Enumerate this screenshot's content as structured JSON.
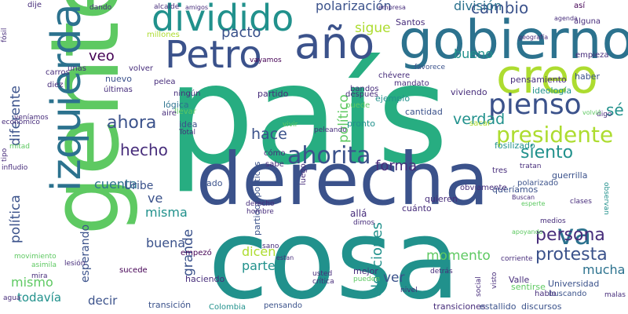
{
  "words": [
    {
      "text": "país",
      "color": "#27ad81"
    },
    {
      "text": "gente",
      "color": "#5ec962"
    },
    {
      "text": "cosa",
      "color": "#21918c"
    },
    {
      "text": "derecha",
      "color": "#3b528b"
    },
    {
      "text": "gobierno",
      "color": "#2c728e"
    },
    {
      "text": "izquierda",
      "color": "#2c728e"
    },
    {
      "text": "año",
      "color": "#3b528b"
    },
    {
      "text": "creo",
      "color": "#addc30"
    },
    {
      "text": "Petro",
      "color": "#3b528b"
    },
    {
      "text": "dividido",
      "color": "#21918c"
    },
    {
      "text": "pienso",
      "color": "#3b528b"
    },
    {
      "text": "ahorita",
      "color": "#3b528b"
    },
    {
      "text": "presidente",
      "color": "#addc30"
    },
    {
      "text": "va",
      "color": "#2c728e"
    },
    {
      "text": "protesta",
      "color": "#3b528b"
    },
    {
      "text": "ahora",
      "color": "#3b528b"
    },
    {
      "text": "hecho",
      "color": "#472d7b"
    },
    {
      "text": "hace",
      "color": "#3b528b"
    },
    {
      "text": "siento",
      "color": "#21918c"
    },
    {
      "text": "persona",
      "color": "#472d7b"
    },
    {
      "text": "polarización",
      "color": "#3b528b"
    },
    {
      "text": "cambio",
      "color": "#3b528b"
    },
    {
      "text": "pacto",
      "color": "#3b528b"
    },
    {
      "text": "división",
      "color": "#2c728e"
    },
    {
      "text": "sigue",
      "color": "#addc30"
    },
    {
      "text": "veo",
      "color": "#440154"
    },
    {
      "text": "bueno",
      "color": "#21918c"
    },
    {
      "text": "verdad",
      "color": "#21918c"
    },
    {
      "text": "sé",
      "color": "#21918c"
    },
    {
      "text": "forma",
      "color": "#472d7b"
    },
    {
      "text": "político",
      "color": "#5ec962"
    },
    {
      "text": "diferente",
      "color": "#3b528b"
    },
    {
      "text": "política",
      "color": "#3b528b"
    },
    {
      "text": "cuenta",
      "color": "#2c728e"
    },
    {
      "text": "ve",
      "color": "#3b528b"
    },
    {
      "text": "misma",
      "color": "#21918c"
    },
    {
      "text": "Uribe",
      "color": "#3b528b"
    },
    {
      "text": "grande",
      "color": "#3b528b"
    },
    {
      "text": "buena",
      "color": "#3b528b"
    },
    {
      "text": "momento",
      "color": "#5ec962"
    },
    {
      "text": "dicen",
      "color": "#addc30"
    },
    {
      "text": "parte",
      "color": "#21918c"
    },
    {
      "text": "elecciones",
      "color": "#21918c"
    },
    {
      "text": "ver",
      "color": "#3b528b"
    },
    {
      "text": "mucha",
      "color": "#2c728e"
    },
    {
      "text": "mismo",
      "color": "#5ec962"
    },
    {
      "text": "esperando",
      "color": "#3b528b"
    },
    {
      "text": "todavía",
      "color": "#21918c"
    },
    {
      "text": "decir",
      "color": "#3b528b"
    },
    {
      "text": "Santos",
      "color": "#472d7b"
    },
    {
      "text": "pensamiento",
      "color": "#472d7b"
    },
    {
      "text": "partido",
      "color": "#472d7b"
    },
    {
      "text": "partidos políticos",
      "color": "#3b528b"
    },
    {
      "text": "ejemplo",
      "color": "#21918c"
    },
    {
      "text": "viviendo",
      "color": "#472d7b"
    },
    {
      "text": "fosilizado",
      "color": "#21918c"
    },
    {
      "text": "ideología",
      "color": "#21918c"
    },
    {
      "text": "cantidad",
      "color": "#3b528b"
    },
    {
      "text": "pronto",
      "color": "#21918c"
    },
    {
      "text": "lógica",
      "color": "#2c728e"
    },
    {
      "text": "idea",
      "color": "#3b528b"
    },
    {
      "text": "lado",
      "color": "#3b528b"
    },
    {
      "text": "tres",
      "color": "#472d7b"
    },
    {
      "text": "queríamos",
      "color": "#3b528b"
    },
    {
      "text": "Universidad",
      "color": "#3b528b"
    },
    {
      "text": "transiciones",
      "color": "#472d7b"
    },
    {
      "text": "estallido",
      "color": "#3b528b"
    },
    {
      "text": "discursos",
      "color": "#3b528b"
    },
    {
      "text": "buscando",
      "color": "#3b528b"
    },
    {
      "text": "sentirse",
      "color": "#5ec962"
    },
    {
      "text": "hablo",
      "color": "#472d7b"
    },
    {
      "text": "Valle",
      "color": "#472d7b"
    },
    {
      "text": "transición",
      "color": "#3b528b"
    },
    {
      "text": "Colombia",
      "color": "#21918c"
    },
    {
      "text": "pensando",
      "color": "#3b528b"
    },
    {
      "text": "mejor",
      "color": "#472d7b"
    },
    {
      "text": "haciendo",
      "color": "#472d7b"
    },
    {
      "text": "sucede",
      "color": "#440154"
    },
    {
      "text": "empezó",
      "color": "#440154"
    },
    {
      "text": "allá",
      "color": "#472d7b"
    },
    {
      "text": "cuánto",
      "color": "#472d7b"
    },
    {
      "text": "quieren",
      "color": "#472d7b"
    },
    {
      "text": "clases",
      "color": "#472d7b"
    },
    {
      "text": "medios",
      "color": "#472d7b"
    },
    {
      "text": "obviamente",
      "color": "#472d7b"
    },
    {
      "text": "polarizado",
      "color": "#3b528b"
    },
    {
      "text": "guerrilla",
      "color": "#3b528b"
    },
    {
      "text": "haber",
      "color": "#3b528b"
    },
    {
      "text": "empieza",
      "color": "#472d7b"
    },
    {
      "text": "alguna",
      "color": "#472d7b"
    },
    {
      "text": "agenda",
      "color": "#472d7b"
    },
    {
      "text": "así",
      "color": "#440154"
    },
    {
      "text": "chévere",
      "color": "#472d7b"
    },
    {
      "text": "mandato",
      "color": "#472d7b"
    },
    {
      "text": "favorece",
      "color": "#3b528b"
    },
    {
      "text": "bandos",
      "color": "#472d7b"
    },
    {
      "text": "después",
      "color": "#472d7b"
    },
    {
      "text": "puede",
      "color": "#5ec962"
    },
    {
      "text": "nuevo",
      "color": "#3b528b"
    },
    {
      "text": "pelea",
      "color": "#472d7b"
    },
    {
      "text": "últimas",
      "color": "#472d7b"
    },
    {
      "text": "volver",
      "color": "#472d7b"
    },
    {
      "text": "unas",
      "color": "#472d7b"
    },
    {
      "text": "carros",
      "color": "#472d7b"
    },
    {
      "text": "diez",
      "color": "#472d7b"
    },
    {
      "text": "mitad",
      "color": "#5ec962"
    },
    {
      "text": "económico",
      "color": "#472d7b"
    },
    {
      "text": "veníamos",
      "color": "#472d7b"
    },
    {
      "text": "ningún",
      "color": "#472d7b"
    },
    {
      "text": "llevar",
      "color": "#5ec962"
    },
    {
      "text": "aire",
      "color": "#472d7b"
    },
    {
      "text": "Total",
      "color": "#472d7b"
    },
    {
      "text": "cómo",
      "color": "#472d7b"
    },
    {
      "text": "sabe",
      "color": "#472d7b"
    },
    {
      "text": "luego",
      "color": "#472d7b"
    },
    {
      "text": "dije",
      "color": "#472d7b"
    },
    {
      "text": "fósil",
      "color": "#472d7b"
    },
    {
      "text": "dando",
      "color": "#472d7b"
    },
    {
      "text": "alcalde",
      "color": "#472d7b"
    },
    {
      "text": "millones",
      "color": "#addc30"
    },
    {
      "text": "vayamos",
      "color": "#440154"
    },
    {
      "text": "vivir",
      "color": "#5ec962"
    },
    {
      "text": "sacar",
      "color": "#addc30"
    },
    {
      "text": "peleando",
      "color": "#472d7b"
    },
    {
      "text": "tratan",
      "color": "#472d7b"
    },
    {
      "text": "usted",
      "color": "#472d7b"
    },
    {
      "text": "crítica",
      "color": "#472d7b"
    },
    {
      "text": "pueden",
      "color": "#5ec962"
    },
    {
      "text": "nivel",
      "color": "#472d7b"
    },
    {
      "text": "social",
      "color": "#472d7b"
    },
    {
      "text": "hombre",
      "color": "#472d7b"
    },
    {
      "text": "derecho",
      "color": "#472d7b"
    },
    {
      "text": "sano",
      "color": "#472d7b"
    },
    {
      "text": "estan",
      "color": "#472d7b"
    },
    {
      "text": "dimos",
      "color": "#472d7b"
    },
    {
      "text": "agua",
      "color": "#472d7b"
    },
    {
      "text": "asimila",
      "color": "#5ec962"
    },
    {
      "text": "movimiento",
      "color": "#5ec962"
    },
    {
      "text": "tipo",
      "color": "#472d7b"
    },
    {
      "text": "infludio",
      "color": "#472d7b"
    },
    {
      "text": "geografía",
      "color": "#472d7b"
    },
    {
      "text": "empresa",
      "color": "#472d7b"
    },
    {
      "text": "amigos",
      "color": "#472d7b"
    },
    {
      "text": "digo",
      "color": "#472d7b"
    },
    {
      "text": "esperte",
      "color": "#5ec962"
    },
    {
      "text": "volvió",
      "color": "#5ec962"
    },
    {
      "text": "observan",
      "color": "#21918c"
    },
    {
      "text": "malas",
      "color": "#472d7b"
    },
    {
      "text": "apoyando",
      "color": "#5ec962"
    },
    {
      "text": "corriente",
      "color": "#472d7b"
    },
    {
      "text": "mira",
      "color": "#472d7b"
    },
    {
      "text": "lesión",
      "color": "#472d7b"
    },
    {
      "text": "detrás",
      "color": "#472d7b"
    },
    {
      "text": "visto",
      "color": "#472d7b"
    },
    {
      "text": "Buscan",
      "color": "#472d7b"
    }
  ]
}
